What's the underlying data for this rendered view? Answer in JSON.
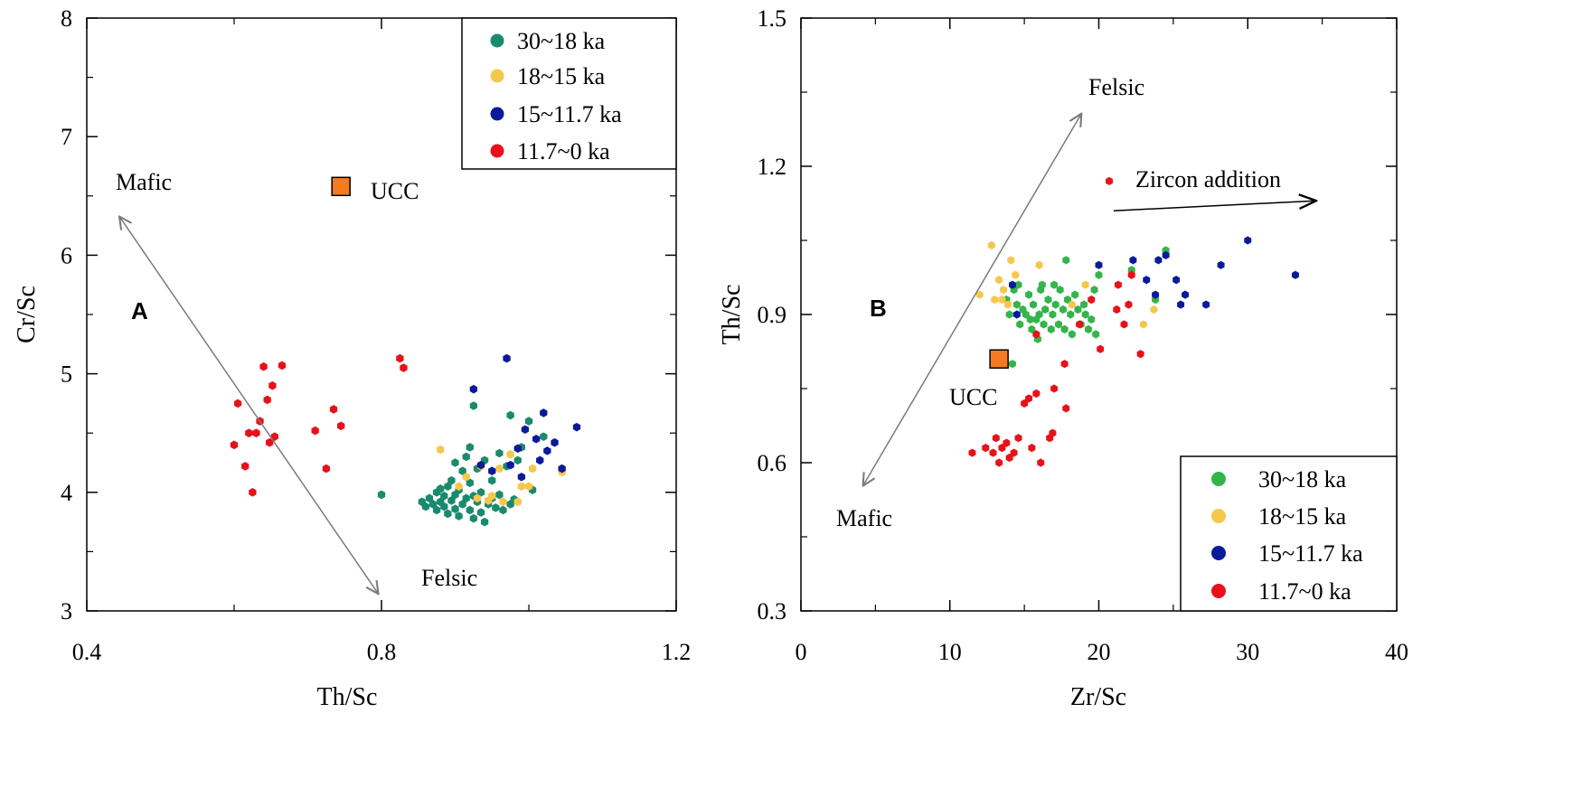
{
  "colors": {
    "green_a": "#1a8a6e",
    "green_b": "#33b54a",
    "yellow": "#f5c84c",
    "blue": "#0a1a9a",
    "red": "#e8111a",
    "ucc_fill": "#f47b1f",
    "arrow_gray": "#7a7a7a"
  },
  "chart_data": [
    {
      "type": "scatter",
      "panel_label": "A",
      "xlabel": "Th/Sc",
      "ylabel": "Cr/Sc",
      "xlim": [
        0.4,
        1.2
      ],
      "ylim": [
        3,
        8
      ],
      "xticks": [
        "0.4",
        "0.8",
        "1.2"
      ],
      "yticks": [
        "3",
        "4",
        "5",
        "6",
        "7",
        "8"
      ],
      "legend_position": "top-right",
      "annotations": {
        "mafic": "Mafic",
        "felsic": "Felsic",
        "ucc": "UCC"
      },
      "ucc_point": {
        "x": 0.745,
        "y": 6.58
      },
      "arrow": {
        "from": [
          0.445,
          6.32
        ],
        "to": [
          0.795,
          3.15
        ]
      },
      "series": [
        {
          "name": "30~18 ka",
          "points": [
            [
              0.8,
              3.98
            ],
            [
              0.855,
              3.92
            ],
            [
              0.86,
              3.88
            ],
            [
              0.865,
              3.95
            ],
            [
              0.87,
              3.9
            ],
            [
              0.875,
              4.0
            ],
            [
              0.875,
              3.85
            ],
            [
              0.88,
              3.92
            ],
            [
              0.88,
              4.03
            ],
            [
              0.885,
              3.97
            ],
            [
              0.885,
              3.88
            ],
            [
              0.89,
              3.82
            ],
            [
              0.89,
              4.05
            ],
            [
              0.895,
              3.93
            ],
            [
              0.895,
              4.1
            ],
            [
              0.9,
              3.86
            ],
            [
              0.9,
              3.98
            ],
            [
              0.9,
              4.25
            ],
            [
              0.905,
              3.8
            ],
            [
              0.905,
              4.02
            ],
            [
              0.91,
              3.9
            ],
            [
              0.91,
              4.18
            ],
            [
              0.915,
              3.95
            ],
            [
              0.915,
              4.3
            ],
            [
              0.92,
              3.85
            ],
            [
              0.92,
              4.08
            ],
            [
              0.92,
              4.38
            ],
            [
              0.925,
              3.78
            ],
            [
              0.925,
              3.97
            ],
            [
              0.925,
              4.73
            ],
            [
              0.93,
              3.92
            ],
            [
              0.93,
              4.2
            ],
            [
              0.935,
              3.83
            ],
            [
              0.935,
              4.0
            ],
            [
              0.94,
              3.75
            ],
            [
              0.94,
              4.27
            ],
            [
              0.945,
              3.9
            ],
            [
              0.95,
              3.95
            ],
            [
              0.95,
              4.1
            ],
            [
              0.955,
              3.87
            ],
            [
              0.96,
              3.98
            ],
            [
              0.96,
              4.33
            ],
            [
              0.965,
              3.85
            ],
            [
              0.97,
              4.22
            ],
            [
              0.975,
              4.65
            ],
            [
              0.975,
              3.9
            ],
            [
              0.98,
              3.94
            ],
            [
              0.985,
              4.27
            ],
            [
              0.99,
              4.38
            ],
            [
              1.0,
              4.6
            ],
            [
              1.005,
              4.02
            ],
            [
              1.02,
              4.47
            ]
          ]
        },
        {
          "name": "18~15 ka",
          "points": [
            [
              0.88,
              4.36
            ],
            [
              0.905,
              4.05
            ],
            [
              0.915,
              4.13
            ],
            [
              0.93,
              3.95
            ],
            [
              0.935,
              4.22
            ],
            [
              0.945,
              3.93
            ],
            [
              0.95,
              3.97
            ],
            [
              0.96,
              4.2
            ],
            [
              0.965,
              3.92
            ],
            [
              0.975,
              4.32
            ],
            [
              0.985,
              3.92
            ],
            [
              0.99,
              4.05
            ],
            [
              1.0,
              4.05
            ],
            [
              1.005,
              4.2
            ],
            [
              1.045,
              4.17
            ]
          ]
        },
        {
          "name": "15~11.7 ka",
          "points": [
            [
              0.925,
              4.87
            ],
            [
              0.935,
              4.23
            ],
            [
              0.95,
              4.18
            ],
            [
              0.97,
              5.13
            ],
            [
              0.975,
              4.23
            ],
            [
              0.985,
              4.37
            ],
            [
              0.99,
              4.13
            ],
            [
              0.995,
              4.53
            ],
            [
              1.01,
              4.45
            ],
            [
              1.015,
              4.27
            ],
            [
              1.02,
              4.67
            ],
            [
              1.025,
              4.35
            ],
            [
              1.035,
              4.42
            ],
            [
              1.045,
              4.2
            ],
            [
              1.065,
              4.55
            ]
          ]
        },
        {
          "name": "11.7~0 ka",
          "points": [
            [
              0.6,
              4.4
            ],
            [
              0.605,
              4.75
            ],
            [
              0.615,
              4.22
            ],
            [
              0.62,
              4.5
            ],
            [
              0.625,
              4.0
            ],
            [
              0.63,
              4.5
            ],
            [
              0.635,
              4.6
            ],
            [
              0.64,
              5.06
            ],
            [
              0.645,
              4.78
            ],
            [
              0.648,
              4.42
            ],
            [
              0.652,
              4.9
            ],
            [
              0.655,
              4.47
            ],
            [
              0.665,
              5.07
            ],
            [
              0.71,
              4.52
            ],
            [
              0.725,
              4.2
            ],
            [
              0.735,
              4.7
            ],
            [
              0.745,
              4.56
            ],
            [
              0.825,
              5.13
            ],
            [
              0.83,
              5.05
            ]
          ]
        }
      ]
    },
    {
      "type": "scatter",
      "panel_label": "B",
      "xlabel": "Zr/Sc",
      "ylabel": "Th/Sc",
      "xlim": [
        0,
        40
      ],
      "ylim": [
        0.3,
        1.5
      ],
      "xticks": [
        "0",
        "10",
        "20",
        "30",
        "40"
      ],
      "yticks": [
        "0.3",
        "0.6",
        "0.9",
        "1.2",
        "1.5"
      ],
      "legend_position": "bottom-right",
      "annotations": {
        "mafic": "Mafic",
        "felsic": "Felsic",
        "ucc": "UCC",
        "zircon": "Zircon addition"
      },
      "ucc_point": {
        "x": 13.3,
        "y": 0.81
      },
      "arrow": {
        "from": [
          4.2,
          0.555
        ],
        "to": [
          18.8,
          1.305
        ]
      },
      "zircon_arrow": {
        "from": [
          21,
          1.11
        ],
        "to": [
          34.5,
          1.13
        ]
      },
      "series": [
        {
          "name": "30~18 ka",
          "points": [
            [
              13.8,
              0.93
            ],
            [
              14.0,
              0.9
            ],
            [
              14.2,
              0.8
            ],
            [
              14.3,
              0.95
            ],
            [
              14.5,
              0.92
            ],
            [
              14.7,
              0.88
            ],
            [
              14.9,
              0.91
            ],
            [
              15.1,
              0.9
            ],
            [
              15.3,
              0.94
            ],
            [
              15.5,
              0.87
            ],
            [
              15.6,
              0.92
            ],
            [
              15.8,
              0.89
            ],
            [
              16.0,
              0.9
            ],
            [
              16.1,
              0.95
            ],
            [
              16.3,
              0.88
            ],
            [
              16.4,
              0.91
            ],
            [
              16.6,
              0.93
            ],
            [
              16.8,
              0.87
            ],
            [
              16.9,
              0.9
            ],
            [
              17.1,
              0.92
            ],
            [
              17.3,
              0.88
            ],
            [
              17.4,
              0.95
            ],
            [
              17.6,
              0.91
            ],
            [
              17.7,
              0.87
            ],
            [
              17.9,
              0.93
            ],
            [
              18.1,
              0.9
            ],
            [
              18.2,
              0.86
            ],
            [
              18.4,
              0.94
            ],
            [
              18.6,
              0.91
            ],
            [
              18.8,
              0.88
            ],
            [
              19.0,
              0.92
            ],
            [
              19.3,
              0.87
            ],
            [
              19.5,
              0.89
            ],
            [
              19.7,
              0.95
            ],
            [
              19.8,
              0.86
            ],
            [
              20.0,
              0.98
            ],
            [
              16.2,
              0.96
            ],
            [
              17.8,
              1.01
            ],
            [
              15.9,
              0.85
            ],
            [
              22.2,
              0.99
            ],
            [
              24.5,
              1.03
            ],
            [
              23.8,
              0.93
            ],
            [
              14.6,
              0.96
            ],
            [
              15.4,
              0.89
            ],
            [
              17.0,
              0.96
            ],
            [
              19.1,
              0.9
            ]
          ]
        },
        {
          "name": "18~15 ka",
          "points": [
            [
              12.0,
              0.94
            ],
            [
              12.8,
              1.04
            ],
            [
              13.0,
              0.93
            ],
            [
              13.3,
              0.97
            ],
            [
              13.6,
              0.95
            ],
            [
              13.9,
              0.92
            ],
            [
              14.1,
              1.01
            ],
            [
              14.4,
              0.98
            ],
            [
              16.0,
              1.0
            ],
            [
              18.2,
              0.92
            ],
            [
              19.1,
              0.96
            ],
            [
              23.0,
              0.88
            ],
            [
              23.7,
              0.91
            ],
            [
              13.5,
              0.93
            ]
          ]
        },
        {
          "name": "15~11.7 ka",
          "points": [
            [
              14.2,
              0.96
            ],
            [
              20.0,
              1.0
            ],
            [
              22.3,
              1.01
            ],
            [
              23.2,
              0.97
            ],
            [
              23.8,
              0.94
            ],
            [
              24.0,
              1.01
            ],
            [
              24.5,
              1.02
            ],
            [
              25.2,
              0.97
            ],
            [
              25.5,
              0.92
            ],
            [
              25.8,
              0.94
            ],
            [
              27.2,
              0.92
            ],
            [
              28.2,
              1.0
            ],
            [
              30.0,
              1.05
            ],
            [
              33.2,
              0.98
            ],
            [
              14.5,
              0.9
            ]
          ]
        },
        {
          "name": "11.7~0 ka",
          "points": [
            [
              11.5,
              0.62
            ],
            [
              12.4,
              0.63
            ],
            [
              12.9,
              0.62
            ],
            [
              13.1,
              0.65
            ],
            [
              13.3,
              0.6
            ],
            [
              13.5,
              0.63
            ],
            [
              13.8,
              0.64
            ],
            [
              14.0,
              0.61
            ],
            [
              14.3,
              0.62
            ],
            [
              14.6,
              0.65
            ],
            [
              15.0,
              0.72
            ],
            [
              15.3,
              0.73
            ],
            [
              15.5,
              0.63
            ],
            [
              15.8,
              0.74
            ],
            [
              16.1,
              0.6
            ],
            [
              16.7,
              0.65
            ],
            [
              16.9,
              0.66
            ],
            [
              17.0,
              0.75
            ],
            [
              17.7,
              0.8
            ],
            [
              17.8,
              0.71
            ],
            [
              18.7,
              0.88
            ],
            [
              19.5,
              0.93
            ],
            [
              20.1,
              0.83
            ],
            [
              21.2,
              0.91
            ],
            [
              21.7,
              0.88
            ],
            [
              22.0,
              0.92
            ],
            [
              22.2,
              0.98
            ],
            [
              22.8,
              0.82
            ],
            [
              21.3,
              0.96
            ],
            [
              15.8,
              0.86
            ],
            [
              20.7,
              1.17
            ]
          ]
        }
      ]
    }
  ]
}
